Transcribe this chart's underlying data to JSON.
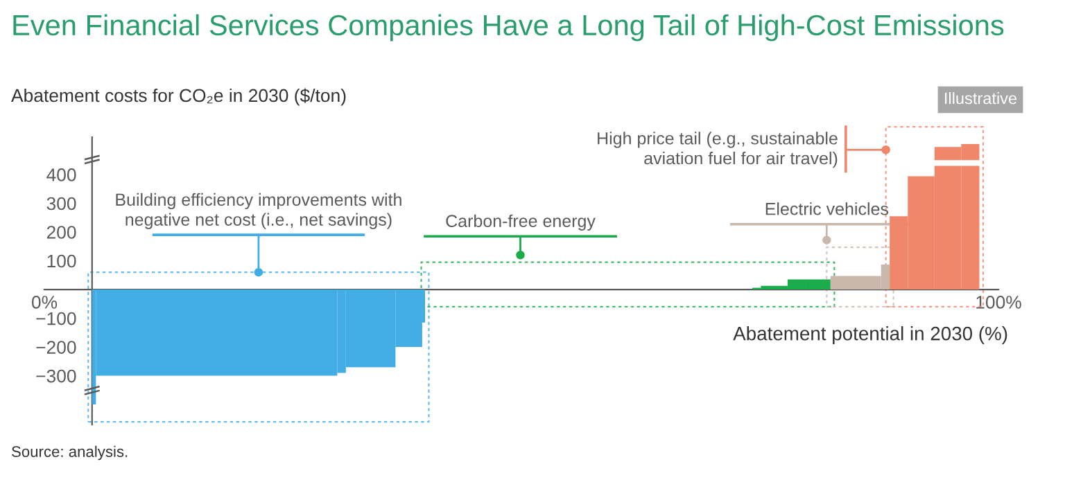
{
  "chart_data": {
    "type": "histogram",
    "title": "Even Financial Services Companies Have a Long Tail of High-Cost Emissions",
    "ylabel": "Abatement costs for CO₂e in 2030 ($/ton)",
    "xlabel": "Abatement potential in 2030 (%)",
    "bins": [
      5.0,
      5.4,
      30.7,
      31.6,
      36.8,
      39.6,
      39.9,
      74.2,
      75.1,
      77.9,
      79.8,
      82.4,
      87.7,
      88.6,
      90.5,
      93.3,
      96.1,
      98.0
    ],
    "values": [
      -400,
      -300,
      -290,
      -270,
      -200,
      -115,
      null,
      6,
      13,
      35,
      35,
      47,
      87,
      255,
      394,
      496,
      506
    ],
    "colors": [
      "#41ade4",
      "#41ade4",
      "#41ade4",
      "#41ade4",
      "#41ade4",
      "#41ade4",
      null,
      "#1aab4a",
      "#1aab4a",
      "#1aab4a",
      "#1aab4a",
      "#c9b9ad",
      "#c9b9ad",
      "#f0866a",
      "#f0866a",
      "#f0866a",
      "#f0866a"
    ],
    "xlim": [
      0,
      100
    ],
    "ylim": [
      -470,
      530
    ],
    "xticks": [
      {
        "value": 0,
        "label": "0%"
      },
      {
        "value": 100,
        "label": "100%"
      }
    ],
    "yticks": [
      {
        "value": -300,
        "label": "−300"
      },
      {
        "value": -200,
        "label": "−200"
      },
      {
        "value": -100,
        "label": "−100"
      },
      100,
      200,
      300,
      400
    ],
    "grid": false,
    "annotations": [
      "Building efficiency improvements with\nnegative net cost (i.e., net savings)",
      "Carbon-free energy",
      "Electric vehicles",
      "High price tail (e.g., sustainable\naviation fuel for air travel)",
      "Illustrative",
      "Source: analysis."
    ]
  }
}
